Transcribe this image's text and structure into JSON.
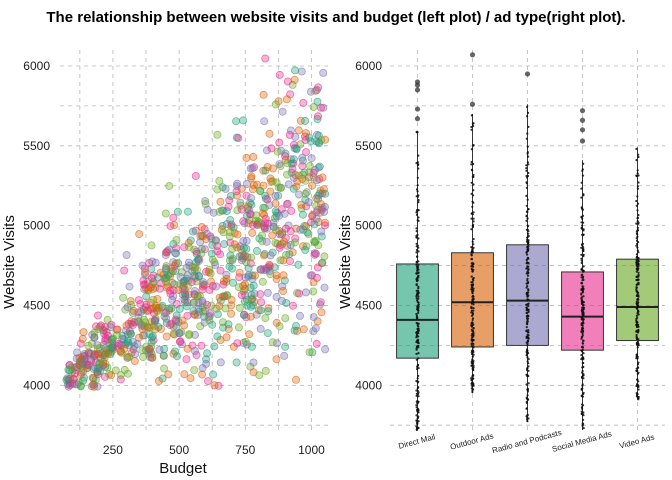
{
  "title": "The relationship between website visits and budget (left plot) / ad type(right plot).",
  "chart_data": [
    {
      "type": "scatter",
      "xlabel": "Budget",
      "ylabel": "Website Visits",
      "xlim": [
        50,
        1070
      ],
      "ylim": [
        3720,
        6100
      ],
      "xticks": [
        250,
        500,
        750,
        1000
      ],
      "yticks": [
        4000,
        4500,
        5000,
        5500,
        6000
      ],
      "grid": true,
      "point_colors": [
        "#1b9e77",
        "#d95f02",
        "#7570b3",
        "#e7298a",
        "#66a61e"
      ],
      "point_alpha": 0.35,
      "n_points": 1000,
      "trend": {
        "at_x_100": 4080,
        "at_x_1000": 5150
      },
      "series": [
        {
          "name": "Direct Mail"
        },
        {
          "name": "Outdoor Ads"
        },
        {
          "name": "Radio and Podcasts"
        },
        {
          "name": "Social Media Ads"
        },
        {
          "name": "Video Ads"
        }
      ]
    },
    {
      "type": "box",
      "xlabel": "",
      "ylabel": "Website Visits",
      "ylim": [
        3720,
        6100
      ],
      "yticks": [
        4000,
        4500,
        5000,
        5500,
        6000
      ],
      "grid": true,
      "categories": [
        "Direct Mail",
        "Outdoor Ads",
        "Radio and Podcasts",
        "Social Media Ads",
        "Video Ads"
      ],
      "colors": [
        "#1b9e77",
        "#d95f02",
        "#7570b3",
        "#e7298a",
        "#66a61e"
      ],
      "boxes": [
        {
          "q1": 4170,
          "median": 4410,
          "q3": 4760,
          "whisker_low": 3720,
          "whisker_high": 5590,
          "outliers": [
            5670,
            5730,
            5850,
            5880,
            5900
          ]
        },
        {
          "q1": 4240,
          "median": 4520,
          "q3": 4830,
          "whisker_low": 3950,
          "whisker_high": 5700,
          "outliers": [
            5760,
            6070
          ]
        },
        {
          "q1": 4250,
          "median": 4530,
          "q3": 4880,
          "whisker_low": 3770,
          "whisker_high": 5760,
          "outliers": [
            5950
          ]
        },
        {
          "q1": 4220,
          "median": 4430,
          "q3": 4710,
          "whisker_low": 3720,
          "whisker_high": 5410,
          "outliers": [
            5530,
            5600,
            5660,
            5720
          ]
        },
        {
          "q1": 4280,
          "median": 4490,
          "q3": 4790,
          "whisker_low": 3910,
          "whisker_high": 5490,
          "outliers": []
        }
      ]
    }
  ]
}
